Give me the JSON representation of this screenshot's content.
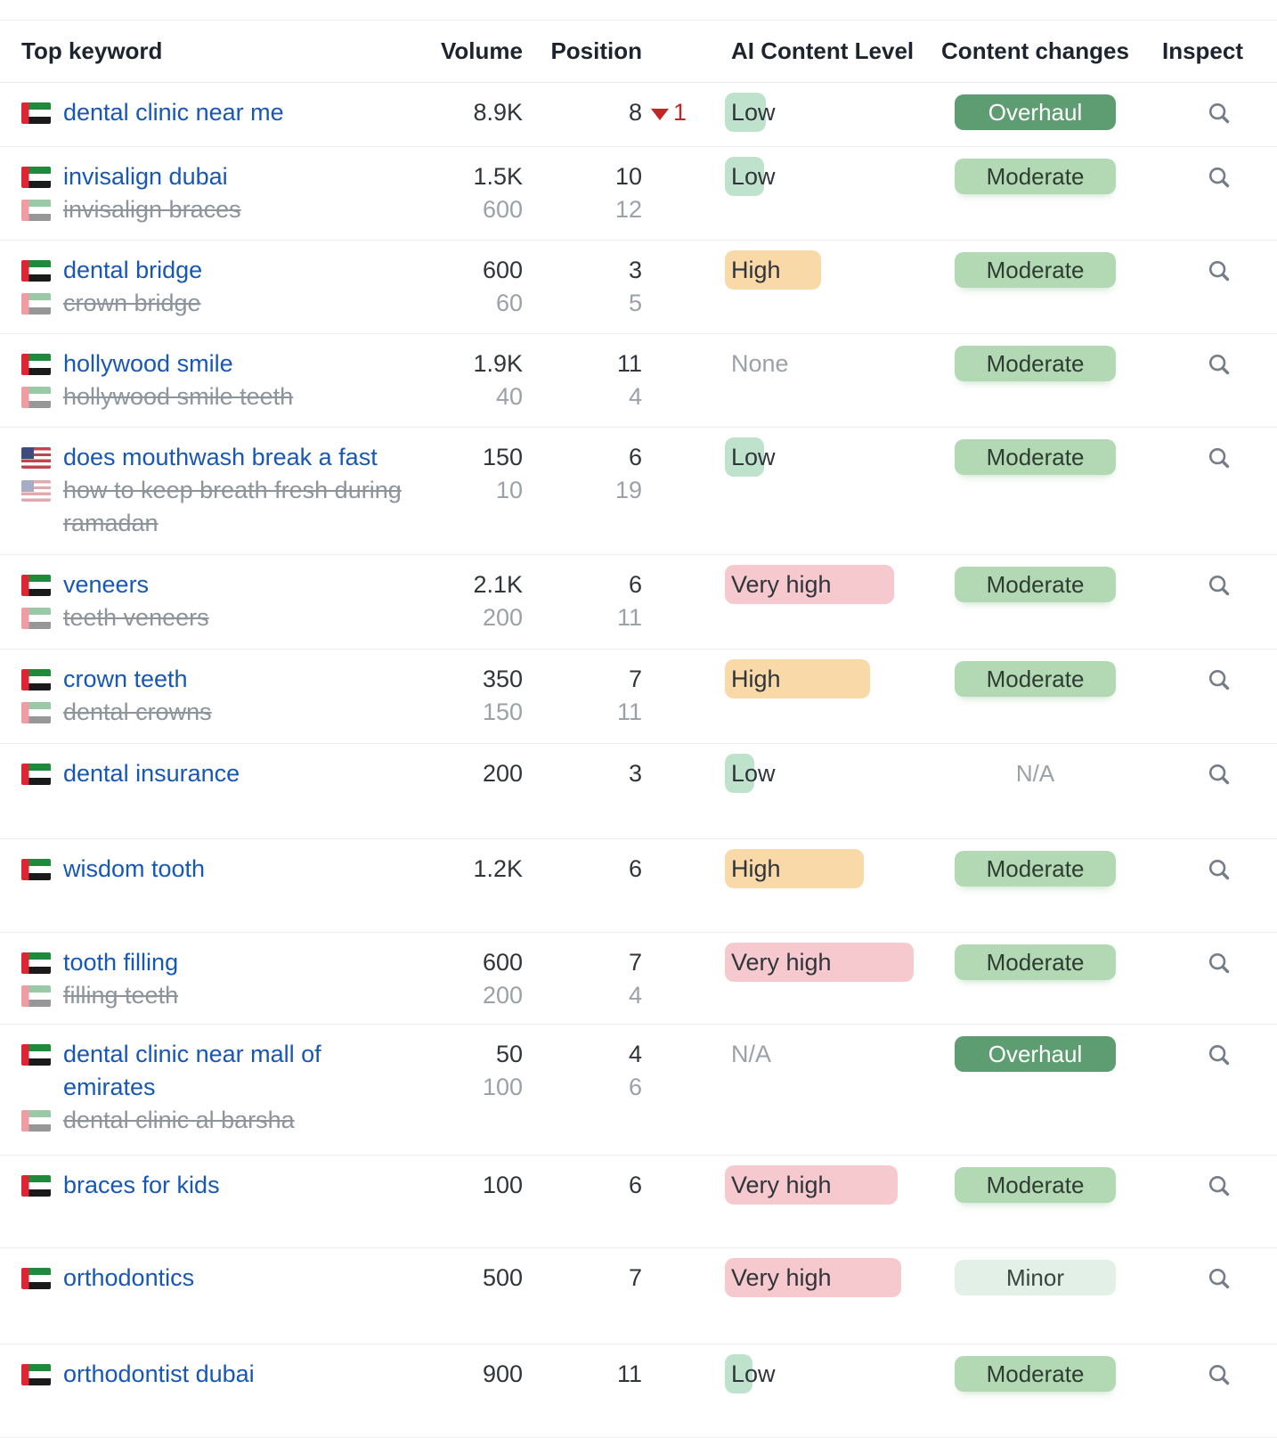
{
  "header": {
    "columns": [
      {
        "label": "Top keyword"
      },
      {
        "label": "Volume"
      },
      {
        "label": "Position"
      },
      {
        "label": "AI Content Level"
      },
      {
        "label": "Content changes"
      },
      {
        "label": "Inspect"
      }
    ]
  },
  "colors": {
    "link_blue": "#1757b5",
    "down_red": "#c22727",
    "ai_low_bg": "#bfe2cd",
    "ai_high_bg": "#f9d9a8",
    "ai_very_high_bg": "#f6c9cf",
    "badge_overhaul_bg": "#5e9d71",
    "badge_moderate_bg": "#b3d9b4",
    "badge_minor_bg": "#e2f0e8",
    "muted_gray": "#9aa1a8"
  },
  "icons": {
    "inspect": "magnifier-icon",
    "position_drop": "triangle-down-icon",
    "flags_used": [
      "uae-flag-icon",
      "usa-flag-icon"
    ]
  },
  "rows": [
    {
      "min_height": 72,
      "flag": "uae",
      "keyword": "dental clinic near me",
      "volume": "8.9K",
      "position": "8",
      "position_change": {
        "direction": "down",
        "value": "1"
      },
      "ai_level": {
        "text": "Low",
        "level": "low",
        "highlight_width": 46
      },
      "content_change": {
        "text": "Overhaul",
        "style": "overhaul"
      }
    },
    {
      "min_height": 105,
      "flag": "uae",
      "keyword": "invisalign dubai",
      "volume": "1.5K",
      "position": "10",
      "secondary": {
        "flag": "uae",
        "keyword": "invisalign braces",
        "volume": "600",
        "position": "12"
      },
      "ai_level": {
        "text": "Low",
        "level": "low",
        "highlight_width": 44
      },
      "content_change": {
        "text": "Moderate",
        "style": "moderate"
      }
    },
    {
      "min_height": 105,
      "flag": "uae",
      "keyword": "dental bridge",
      "volume": "600",
      "position": "3",
      "secondary": {
        "flag": "uae",
        "keyword": "crown bridge",
        "volume": "60",
        "position": "5"
      },
      "ai_level": {
        "text": "High",
        "level": "high",
        "highlight_width": 108
      },
      "content_change": {
        "text": "Moderate",
        "style": "moderate"
      }
    },
    {
      "min_height": 105,
      "flag": "uae",
      "keyword": "hollywood smile",
      "volume": "1.9K",
      "position": "11",
      "secondary": {
        "flag": "uae",
        "keyword": "hollywood smile teeth",
        "volume": "40",
        "position": "4"
      },
      "ai_level": {
        "text": "None",
        "level": "none"
      },
      "content_change": {
        "text": "Moderate",
        "style": "moderate"
      }
    },
    {
      "min_height": 143,
      "flag": "usa",
      "keyword": "does mouthwash break a fast",
      "volume": "150",
      "position": "6",
      "secondary": {
        "flag": "usa",
        "keyword": "how to keep breath fresh during ramadan",
        "volume": "10",
        "position": "19"
      },
      "ai_level": {
        "text": "Low",
        "level": "low",
        "highlight_width": 44
      },
      "content_change": {
        "text": "Moderate",
        "style": "moderate"
      }
    },
    {
      "min_height": 106,
      "flag": "uae",
      "keyword": "veneers",
      "volume": "2.1K",
      "position": "6",
      "secondary": {
        "flag": "uae",
        "keyword": "teeth veneers",
        "volume": "200",
        "position": "11"
      },
      "ai_level": {
        "text": "Very high",
        "level": "veryhigh",
        "highlight_width": 190
      },
      "content_change": {
        "text": "Moderate",
        "style": "moderate"
      }
    },
    {
      "min_height": 106,
      "flag": "uae",
      "keyword": "crown teeth",
      "volume": "350",
      "position": "7",
      "secondary": {
        "flag": "uae",
        "keyword": "dental crowns",
        "volume": "150",
        "position": "11"
      },
      "ai_level": {
        "text": "High",
        "level": "high",
        "highlight_width": 163
      },
      "content_change": {
        "text": "Moderate",
        "style": "moderate"
      }
    },
    {
      "min_height": 107,
      "flag": "uae",
      "keyword": "dental insurance",
      "volume": "200",
      "position": "3",
      "ai_level": {
        "text": "Low",
        "level": "low",
        "highlight_width": 33
      },
      "content_change": {
        "text": "N/A",
        "style": "na"
      }
    },
    {
      "min_height": 105,
      "flag": "uae",
      "keyword": "wisdom tooth",
      "volume": "1.2K",
      "position": "6",
      "ai_level": {
        "text": "High",
        "level": "high",
        "highlight_width": 156
      },
      "content_change": {
        "text": "Moderate",
        "style": "moderate"
      }
    },
    {
      "min_height": 103,
      "flag": "uae",
      "keyword": "tooth filling",
      "volume": "600",
      "position": "7",
      "secondary": {
        "flag": "uae",
        "keyword": "filling teeth",
        "volume": "200",
        "position": "4"
      },
      "ai_level": {
        "text": "Very high",
        "level": "veryhigh",
        "highlight_width": 212
      },
      "content_change": {
        "text": "Moderate",
        "style": "moderate"
      }
    },
    {
      "min_height": 147,
      "flag": "uae",
      "keyword": "dental clinic near mall of emirates",
      "volume": "50",
      "position": "4",
      "secondary": {
        "flag": "uae",
        "keyword": "dental clinic al barsha",
        "volume": "100",
        "position": "6"
      },
      "ai_level": {
        "text": "N/A",
        "level": "none"
      },
      "content_change": {
        "text": "Overhaul",
        "style": "overhaul"
      }
    },
    {
      "min_height": 104,
      "flag": "uae",
      "keyword": "braces for kids",
      "volume": "100",
      "position": "6",
      "ai_level": {
        "text": "Very high",
        "level": "veryhigh",
        "highlight_width": 194
      },
      "content_change": {
        "text": "Moderate",
        "style": "moderate"
      }
    },
    {
      "min_height": 108,
      "flag": "uae",
      "keyword": "orthodontics",
      "volume": "500",
      "position": "7",
      "ai_level": {
        "text": "Very high",
        "level": "veryhigh",
        "highlight_width": 198
      },
      "content_change": {
        "text": "Minor",
        "style": "minor"
      }
    },
    {
      "min_height": 105,
      "flag": "uae",
      "keyword": "orthodontist dubai",
      "volume": "900",
      "position": "11",
      "ai_level": {
        "text": "Low",
        "level": "low",
        "highlight_width": 31
      },
      "content_change": {
        "text": "Moderate",
        "style": "moderate"
      }
    }
  ]
}
